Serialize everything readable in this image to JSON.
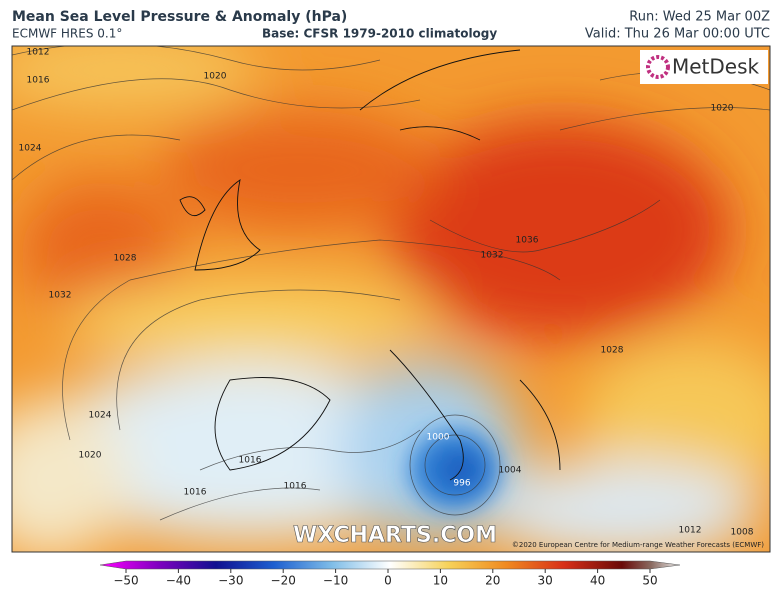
{
  "header": {
    "title": "Mean Sea Level Pressure & Anomaly (hPa)",
    "model": "ECMWF HRES 0.1°",
    "base": "Base: CFSR 1979-2010 climatology",
    "run": "Run: Wed 25 Mar 00Z",
    "valid": "Valid: Thu 26 Mar 00:00 UTC"
  },
  "logo": "MetDesk",
  "watermark": "WXCHARTS.COM",
  "credit": "©2020 European Centre for Medium-range Weather Forecasts (ECMWF)",
  "contour_labels": [
    "1012",
    "1016",
    "1020",
    "1024",
    "1028",
    "1032",
    "1024",
    "1020",
    "1016",
    "1016",
    "1016",
    "1032",
    "1036",
    "1028",
    "1020",
    "1000",
    "996",
    "1004",
    "1012",
    "1008"
  ],
  "colorbar": {
    "ticks": [
      "−50",
      "−40",
      "−30",
      "−20",
      "−10",
      "0",
      "10",
      "20",
      "30",
      "40",
      "50"
    ]
  }
}
